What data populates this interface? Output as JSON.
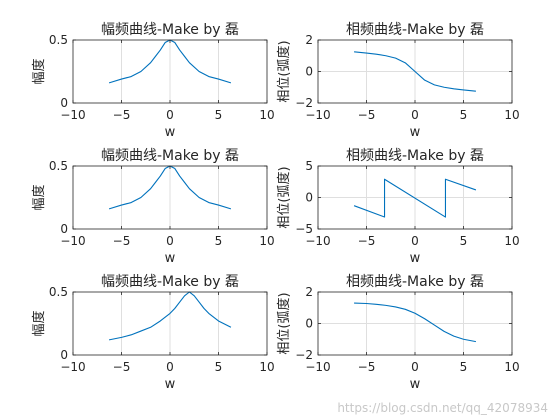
{
  "colors": {
    "line": "#0072BD",
    "grid": "#dfdfdf",
    "axis": "#262626",
    "watermark": "#c8c8c8"
  },
  "watermark": "https://blog.csdn.net/qq_42078934",
  "chart_data": [
    {
      "type": "line",
      "title": "幅频曲线-Make by 磊",
      "xlabel": "w",
      "ylabel": "幅度",
      "xlim": [
        -10,
        10
      ],
      "ylim": [
        0,
        0.5
      ],
      "xticks": [
        -10,
        -5,
        0,
        5,
        10
      ],
      "yticks": [
        0,
        0.5
      ],
      "grid": true,
      "series": [
        {
          "x": [
            -6.28,
            -5,
            -4,
            -3,
            -2,
            -1.5,
            -1,
            -0.5,
            0,
            0.5,
            1,
            1.5,
            2,
            3,
            4,
            5,
            6.28
          ],
          "values": [
            0.16,
            0.19,
            0.21,
            0.25,
            0.32,
            0.37,
            0.42,
            0.48,
            0.5,
            0.48,
            0.42,
            0.37,
            0.32,
            0.25,
            0.21,
            0.19,
            0.16
          ]
        }
      ]
    },
    {
      "type": "line",
      "title": "相频曲线-Make by 磊",
      "xlabel": "w",
      "ylabel": "相位(弧度)",
      "xlim": [
        -10,
        10
      ],
      "ylim": [
        -2,
        2
      ],
      "xticks": [
        -10,
        -5,
        0,
        5,
        10
      ],
      "yticks": [
        -2,
        0,
        2
      ],
      "grid": true,
      "series": [
        {
          "x": [
            -6.28,
            -5,
            -4,
            -3,
            -2,
            -1,
            0,
            1,
            2,
            3,
            4,
            5,
            6.28
          ],
          "values": [
            1.25,
            1.17,
            1.1,
            1.0,
            0.85,
            0.55,
            0.0,
            -0.55,
            -0.85,
            -1.0,
            -1.1,
            -1.17,
            -1.25
          ]
        }
      ]
    },
    {
      "type": "line",
      "title": "幅频曲线-Make by 磊",
      "xlabel": "w",
      "ylabel": "幅度",
      "xlim": [
        -10,
        10
      ],
      "ylim": [
        0,
        0.5
      ],
      "xticks": [
        -10,
        -5,
        0,
        5,
        10
      ],
      "yticks": [
        0,
        0.5
      ],
      "grid": true,
      "series": [
        {
          "x": [
            -6.28,
            -5,
            -4,
            -3,
            -2,
            -1.5,
            -1,
            -0.5,
            0,
            0.5,
            1,
            1.5,
            2,
            3,
            4,
            5,
            6.28
          ],
          "values": [
            0.16,
            0.19,
            0.21,
            0.25,
            0.32,
            0.37,
            0.42,
            0.48,
            0.5,
            0.48,
            0.42,
            0.37,
            0.32,
            0.25,
            0.21,
            0.19,
            0.16
          ]
        }
      ]
    },
    {
      "type": "line",
      "title": "相频曲线-Make by 磊",
      "xlabel": "w",
      "ylabel": "相位(弧度)",
      "xlim": [
        -10,
        10
      ],
      "ylim": [
        -5,
        5
      ],
      "xticks": [
        -10,
        -5,
        0,
        5,
        10
      ],
      "yticks": [
        -5,
        0,
        5
      ],
      "grid": true,
      "series": [
        {
          "x": [
            -6.28,
            -3.14,
            -3.14,
            3.14,
            3.14,
            6.28
          ],
          "values": [
            -1.3,
            -3.1,
            2.9,
            -3.1,
            2.9,
            1.2
          ]
        }
      ]
    },
    {
      "type": "line",
      "title": "幅频曲线-Make by 磊",
      "xlabel": "w",
      "ylabel": "幅度",
      "xlim": [
        -10,
        10
      ],
      "ylim": [
        0,
        0.5
      ],
      "xticks": [
        -10,
        -5,
        0,
        5,
        10
      ],
      "yticks": [
        0,
        0.5
      ],
      "grid": true,
      "series": [
        {
          "x": [
            -6.28,
            -5,
            -4,
            -3,
            -2,
            -1,
            0,
            0.5,
            1,
            1.5,
            2,
            2.5,
            3,
            3.5,
            4,
            5,
            6.28
          ],
          "values": [
            0.12,
            0.14,
            0.16,
            0.19,
            0.22,
            0.27,
            0.33,
            0.37,
            0.42,
            0.47,
            0.5,
            0.47,
            0.42,
            0.37,
            0.33,
            0.27,
            0.22
          ]
        }
      ]
    },
    {
      "type": "line",
      "title": "相频曲线-Make by 磊",
      "xlabel": "w",
      "ylabel": "相位(弧度)",
      "xlim": [
        -10,
        10
      ],
      "ylim": [
        -2,
        2
      ],
      "xticks": [
        -10,
        -5,
        0,
        5,
        10
      ],
      "yticks": [
        -2,
        0,
        2
      ],
      "grid": true,
      "series": [
        {
          "x": [
            -6.28,
            -5,
            -4,
            -3,
            -2,
            -1,
            0,
            1,
            2,
            3,
            4,
            5,
            6.28
          ],
          "values": [
            1.3,
            1.27,
            1.22,
            1.15,
            1.05,
            0.9,
            0.65,
            0.3,
            -0.1,
            -0.5,
            -0.8,
            -1.0,
            -1.15
          ]
        }
      ]
    }
  ]
}
